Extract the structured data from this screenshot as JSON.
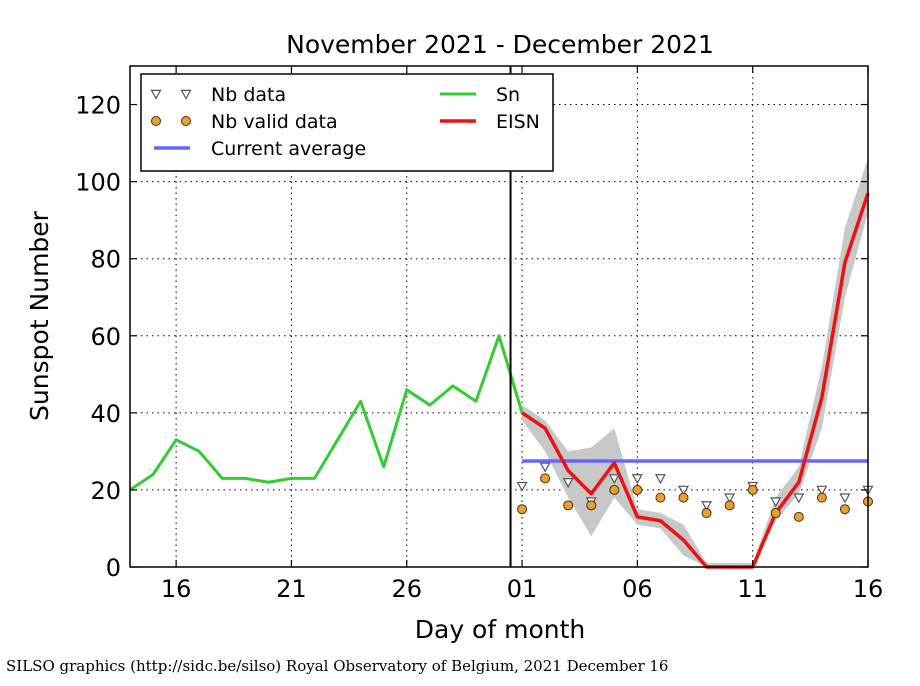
{
  "chart_data": {
    "type": "line",
    "title": "November 2021 - December 2021",
    "xlabel": "Day of month",
    "ylabel": "Sunspot Number",
    "ylim": [
      0,
      130
    ],
    "yticks": [
      0,
      20,
      40,
      60,
      80,
      100,
      120
    ],
    "xticks": [
      {
        "day": 16,
        "label": "16"
      },
      {
        "day": 21,
        "label": "21"
      },
      {
        "day": 26,
        "label": "26"
      },
      {
        "day": 31,
        "label": "01"
      },
      {
        "day": 36,
        "label": "06"
      },
      {
        "day": 41,
        "label": "11"
      },
      {
        "day": 46,
        "label": "16"
      }
    ],
    "xlim_days": [
      14,
      46
    ],
    "month_boundary_day": 30.5,
    "grid": true,
    "legend_position": "top-left",
    "legend": [
      {
        "key": "nb_data",
        "label": "Nb data"
      },
      {
        "key": "nb_valid",
        "label": "Nb valid data"
      },
      {
        "key": "average",
        "label": "Current average"
      },
      {
        "key": "sn",
        "label": "Sn"
      },
      {
        "key": "eisn",
        "label": "EISN"
      }
    ],
    "colors": {
      "sn": "#33cc33",
      "eisn": "#ee1111",
      "average": "#6666ff",
      "band": "#c8c8c8",
      "valid": "#f0a020"
    },
    "sn": {
      "name": "Sn",
      "days": [
        14,
        15,
        16,
        17,
        18,
        19,
        20,
        21,
        22,
        23,
        24,
        25,
        26,
        27,
        28,
        29,
        30,
        31
      ],
      "values": [
        20,
        24,
        33,
        30,
        23,
        23,
        22,
        23,
        23,
        33,
        43,
        26,
        46,
        42,
        47,
        43,
        60,
        40
      ]
    },
    "eisn": {
      "name": "EISN",
      "days": [
        31,
        32,
        33,
        34,
        35,
        36,
        37,
        38,
        39,
        40,
        41,
        42,
        43,
        44,
        45,
        46
      ],
      "values": [
        40,
        36,
        25,
        19,
        27,
        13,
        12,
        7,
        0,
        0,
        0,
        14,
        22,
        44,
        79,
        97
      ],
      "lower": [
        38,
        30,
        18,
        8,
        18,
        11,
        10,
        3,
        0,
        0,
        0,
        12,
        19,
        36,
        70,
        92
      ],
      "upper": [
        42,
        38,
        30,
        31,
        36,
        15,
        14,
        11,
        1,
        1,
        1,
        18,
        26,
        52,
        88,
        106
      ]
    },
    "nb_data": {
      "days": [
        31,
        32,
        33,
        34,
        35,
        36,
        37,
        38,
        39,
        40,
        41,
        42,
        43,
        44,
        45,
        46
      ],
      "values": [
        21,
        26,
        22,
        17,
        23,
        23,
        23,
        20,
        16,
        18,
        21,
        17,
        18,
        20,
        18,
        20
      ]
    },
    "nb_valid": {
      "days": [
        31,
        32,
        33,
        34,
        35,
        36,
        37,
        38,
        39,
        40,
        41,
        42,
        43,
        44,
        45,
        46
      ],
      "values": [
        15,
        23,
        16,
        16,
        20,
        20,
        18,
        18,
        14,
        16,
        20,
        14,
        13,
        18,
        15,
        17
      ]
    },
    "average": {
      "name": "Current average",
      "start_day": 31,
      "end_day": 46,
      "value": 27.5
    }
  },
  "credit": "SILSO graphics (http://sidc.be/silso) Royal Observatory of Belgium, 2021 December 16"
}
